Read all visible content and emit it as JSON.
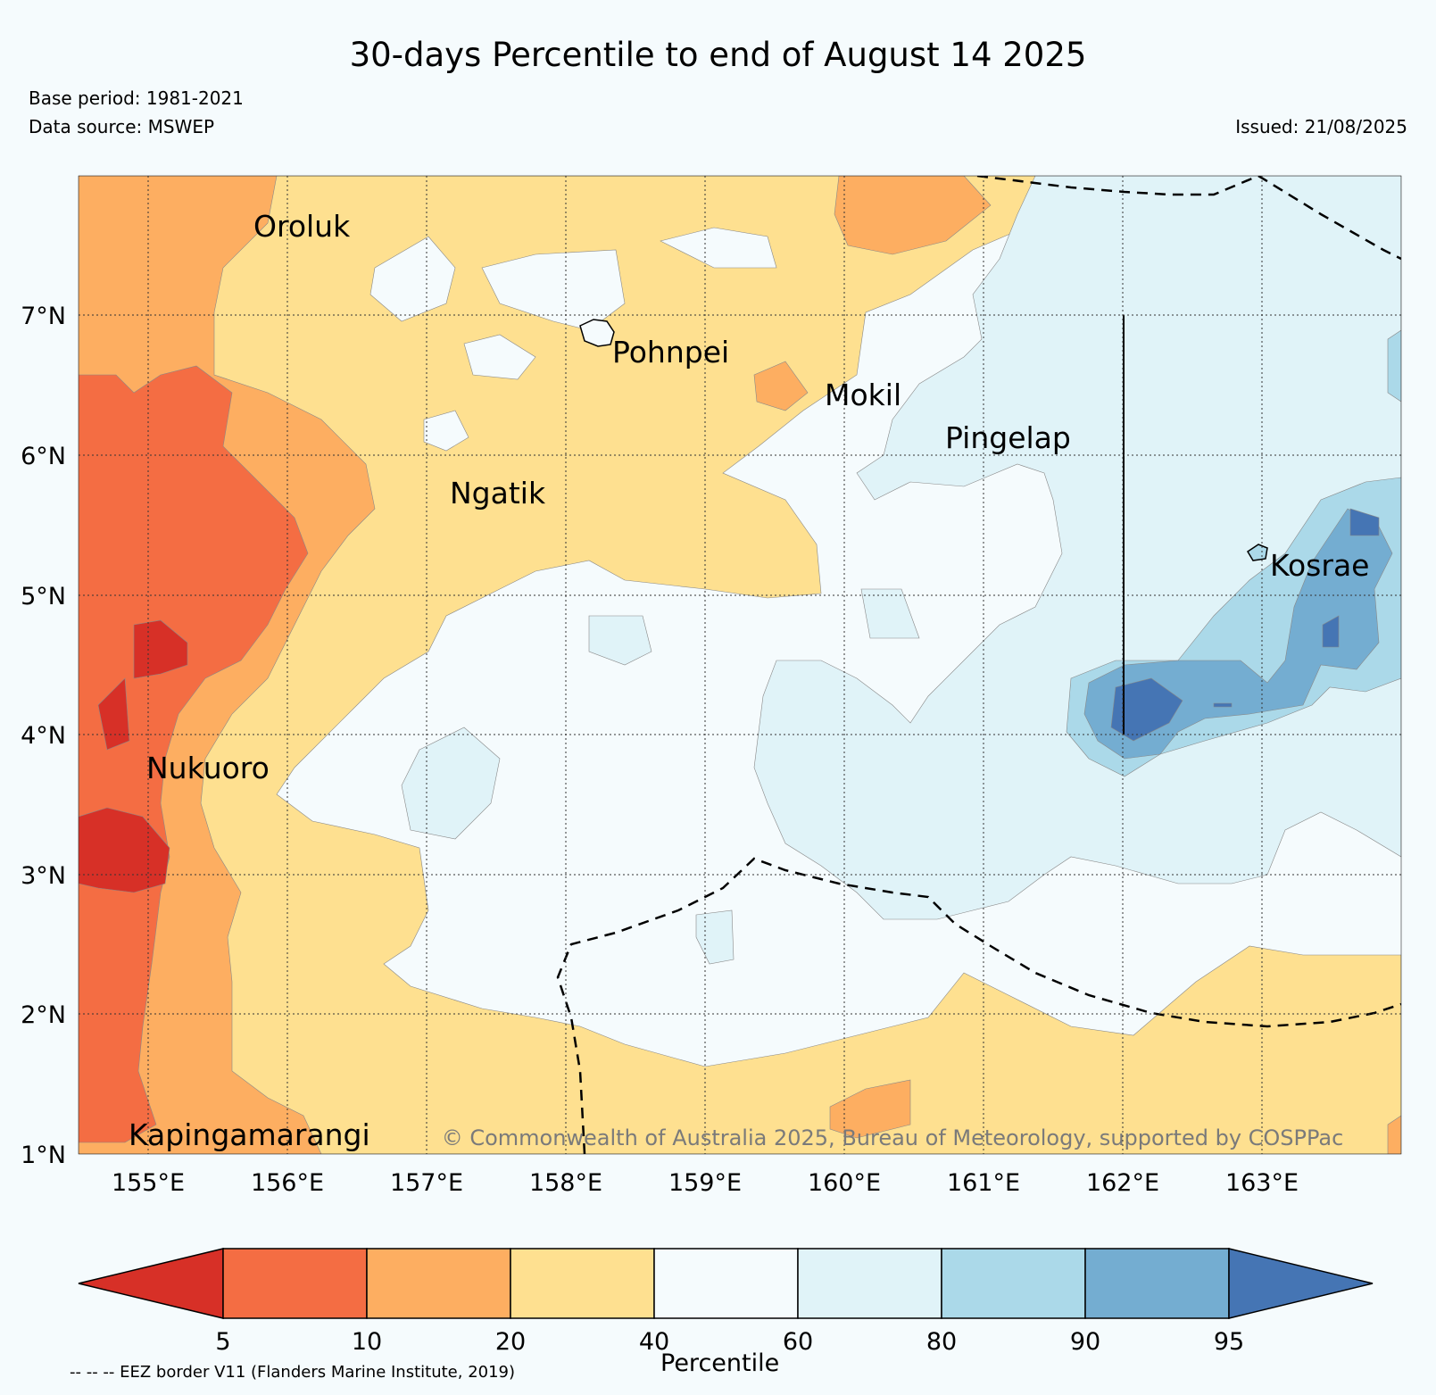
{
  "title": "30-days Percentile to end of August 14 2025",
  "base_period": "Base period: 1981-2021",
  "data_source": "Data source: MSWEP",
  "issued": "Issued: 21/08/2025",
  "copyright": "© Commonwealth of Australia 2025, Bureau of Meteorology, supported by COSPPac",
  "eez_note": "-- -- -- EEZ border V11 (Flanders Marine Institute, 2019)",
  "axes": {
    "lat_labels": [
      "7°N",
      "6°N",
      "5°N",
      "4°N",
      "3°N",
      "2°N",
      "1°N"
    ],
    "lon_labels": [
      "155°E",
      "156°E",
      "157°E",
      "158°E",
      "159°E",
      "160°E",
      "161°E",
      "162°E",
      "163°E"
    ]
  },
  "places": [
    {
      "name": "Oroluk"
    },
    {
      "name": "Pohnpei"
    },
    {
      "name": "Mokil"
    },
    {
      "name": "Pingelap"
    },
    {
      "name": "Ngatik"
    },
    {
      "name": "Kosrae"
    },
    {
      "name": "Nukuoro"
    },
    {
      "name": "Kapingamarangi"
    }
  ],
  "colorbar": {
    "title": "Percentile",
    "ticks": [
      "5",
      "10",
      "20",
      "40",
      "60",
      "80",
      "90",
      "95"
    ],
    "colors": [
      "#d73027",
      "#f46d43",
      "#fdae61",
      "#fee090",
      "#f5fbfd",
      "#e0f3f8",
      "#abd9e9",
      "#74add1",
      "#4575b4"
    ]
  }
}
